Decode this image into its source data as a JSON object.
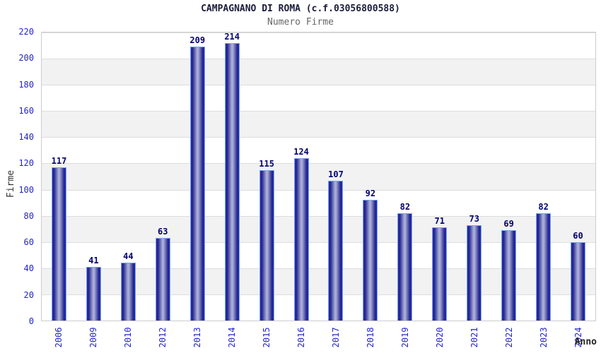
{
  "chart_data": {
    "type": "bar",
    "title": "CAMPAGNANO DI ROMA (c.f.03056800588)",
    "subtitle": "Numero Firme",
    "xlabel": "Anno",
    "ylabel": "Firme",
    "categories": [
      "2006",
      "2009",
      "2010",
      "2012",
      "2013",
      "2014",
      "2015",
      "2016",
      "2017",
      "2018",
      "2019",
      "2020",
      "2021",
      "2022",
      "2023",
      "2024"
    ],
    "values": [
      117,
      41,
      44,
      63,
      209,
      214,
      115,
      124,
      107,
      92,
      82,
      71,
      73,
      69,
      82,
      60
    ],
    "ylim": [
      0,
      220
    ],
    "ytick_step": 20,
    "grid": "horizontal-bands-alternating",
    "legend": "none"
  },
  "colors": {
    "title": "#1c1c3c",
    "subtitle": "#666666",
    "tick_label": "#2424cc",
    "value_label": "#00006e",
    "bar_dark": "#23238a",
    "bar_light": "#a8add8",
    "bar_edge_bright": "#2a2ac0",
    "bar_border": "#74a9e4",
    "band_gray": "#f2f2f2",
    "plot_border": "#cccccc"
  }
}
